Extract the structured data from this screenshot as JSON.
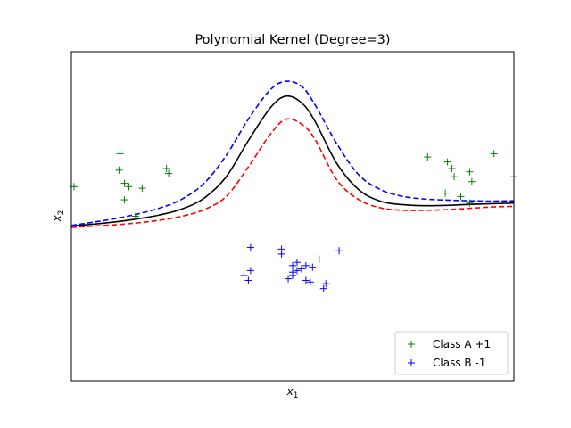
{
  "chart_data": {
    "type": "scatter",
    "title": "Polynomial Kernel (Degree=3)",
    "xlabel": "x",
    "xlabel_sub": "1",
    "ylabel": "x",
    "ylabel_sub": "2",
    "xlim": [
      0,
      10
    ],
    "ylim": [
      0,
      10
    ],
    "grid": false,
    "ticks_visible": false,
    "legend_position": "lower-right",
    "series": [
      {
        "name": "Class A +1",
        "marker": "+",
        "color": "#008000",
        "points": [
          [
            0.06,
            5.9
          ],
          [
            1.1,
            6.9
          ],
          [
            1.08,
            6.4
          ],
          [
            1.2,
            6.0
          ],
          [
            1.3,
            5.9
          ],
          [
            1.6,
            5.85
          ],
          [
            1.2,
            5.5
          ],
          [
            1.45,
            5.0
          ],
          [
            2.15,
            6.45
          ],
          [
            2.2,
            6.3
          ],
          [
            8.05,
            6.8
          ],
          [
            8.5,
            6.65
          ],
          [
            8.6,
            6.45
          ],
          [
            9.0,
            6.35
          ],
          [
            8.65,
            6.2
          ],
          [
            9.05,
            6.05
          ],
          [
            8.45,
            5.7
          ],
          [
            8.8,
            5.6
          ],
          [
            9.55,
            6.9
          ],
          [
            10.0,
            6.2
          ],
          [
            9.0,
            5.4
          ]
        ]
      },
      {
        "name": "Class B -1",
        "marker": "+",
        "color": "#0000ff",
        "points": [
          [
            4.05,
            4.05
          ],
          [
            4.75,
            4.0
          ],
          [
            4.75,
            3.85
          ],
          [
            5.0,
            3.5
          ],
          [
            5.1,
            3.6
          ],
          [
            5.1,
            3.35
          ],
          [
            5.2,
            3.4
          ],
          [
            5.3,
            3.5
          ],
          [
            5.0,
            3.3
          ],
          [
            5.45,
            3.45
          ],
          [
            5.4,
            3.0
          ],
          [
            5.6,
            3.7
          ],
          [
            5.75,
            2.95
          ],
          [
            4.05,
            3.35
          ],
          [
            3.9,
            3.2
          ],
          [
            4.0,
            3.05
          ],
          [
            5.3,
            3.05
          ],
          [
            5.7,
            2.8
          ],
          [
            6.05,
            3.95
          ],
          [
            5.0,
            3.2
          ],
          [
            4.9,
            3.1
          ]
        ]
      }
    ],
    "boundaries": [
      {
        "role": "decision",
        "color": "#000000",
        "dash": "solid",
        "points": [
          [
            0,
            4.7
          ],
          [
            0.5,
            4.76
          ],
          [
            1,
            4.83
          ],
          [
            1.5,
            4.92
          ],
          [
            2,
            5.04
          ],
          [
            2.5,
            5.22
          ],
          [
            3,
            5.55
          ],
          [
            3.5,
            6.2
          ],
          [
            4,
            7.3
          ],
          [
            4.5,
            8.3
          ],
          [
            4.85,
            8.65
          ],
          [
            5.2,
            8.45
          ],
          [
            5.5,
            7.9
          ],
          [
            6,
            6.6
          ],
          [
            6.5,
            5.8
          ],
          [
            7,
            5.45
          ],
          [
            7.5,
            5.35
          ],
          [
            8,
            5.32
          ],
          [
            8.5,
            5.33
          ],
          [
            9,
            5.36
          ],
          [
            9.5,
            5.38
          ],
          [
            10,
            5.4
          ]
        ]
      },
      {
        "role": "margin +1",
        "color": "#0000ff",
        "dash": "dashed",
        "points": [
          [
            0,
            4.72
          ],
          [
            0.5,
            4.82
          ],
          [
            1,
            4.93
          ],
          [
            1.5,
            5.07
          ],
          [
            2,
            5.25
          ],
          [
            2.5,
            5.52
          ],
          [
            3,
            6.0
          ],
          [
            3.5,
            6.85
          ],
          [
            4,
            7.95
          ],
          [
            4.5,
            8.85
          ],
          [
            4.85,
            9.1
          ],
          [
            5.2,
            8.95
          ],
          [
            5.5,
            8.4
          ],
          [
            6,
            7.2
          ],
          [
            6.5,
            6.25
          ],
          [
            7,
            5.8
          ],
          [
            7.5,
            5.6
          ],
          [
            8,
            5.52
          ],
          [
            8.5,
            5.49
          ],
          [
            9,
            5.47
          ],
          [
            9.5,
            5.46
          ],
          [
            10,
            5.47
          ]
        ]
      },
      {
        "role": "margin -1",
        "color": "#ff0000",
        "dash": "dashed",
        "points": [
          [
            0,
            4.66
          ],
          [
            0.5,
            4.7
          ],
          [
            1,
            4.74
          ],
          [
            1.5,
            4.8
          ],
          [
            2,
            4.88
          ],
          [
            2.5,
            5.0
          ],
          [
            3,
            5.2
          ],
          [
            3.5,
            5.6
          ],
          [
            4,
            6.5
          ],
          [
            4.5,
            7.5
          ],
          [
            4.85,
            7.95
          ],
          [
            5.2,
            7.8
          ],
          [
            5.5,
            7.35
          ],
          [
            6,
            6.1
          ],
          [
            6.5,
            5.5
          ],
          [
            7,
            5.25
          ],
          [
            7.5,
            5.18
          ],
          [
            8,
            5.18
          ],
          [
            8.5,
            5.2
          ],
          [
            9,
            5.24
          ],
          [
            9.5,
            5.28
          ],
          [
            10,
            5.3
          ]
        ]
      }
    ]
  }
}
